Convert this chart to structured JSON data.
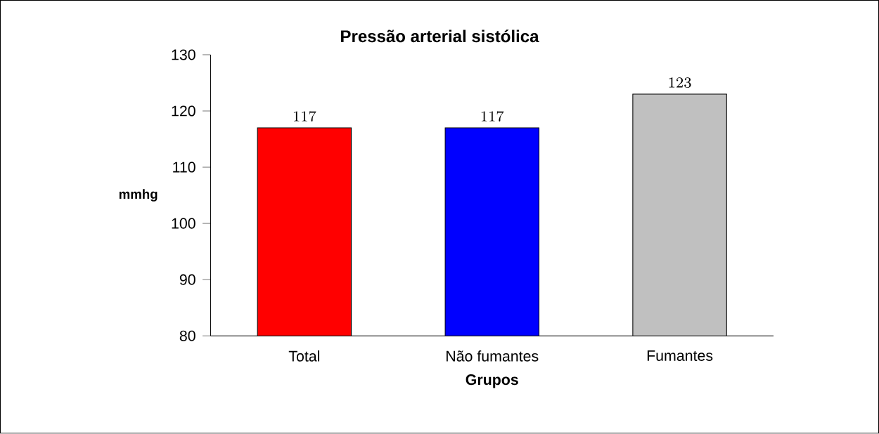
{
  "chart_data": {
    "type": "bar",
    "title": "Pressão arterial sistólica",
    "xlabel": "Grupos",
    "ylabel": "mmhg",
    "categories": [
      "Total",
      "Não fumantes",
      "Fumantes"
    ],
    "values": [
      117,
      117,
      123
    ],
    "colors": [
      "#ff0000",
      "#0000ff",
      "#c0c0c0"
    ],
    "ylim": [
      80,
      130
    ],
    "yticks": [
      80,
      90,
      100,
      110,
      120,
      130
    ],
    "data_labels": true
  }
}
